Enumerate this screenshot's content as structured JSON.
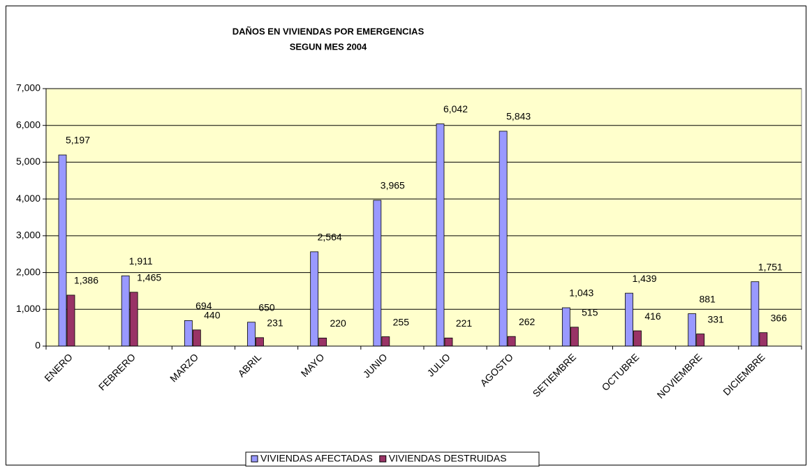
{
  "chart_data": {
    "type": "bar",
    "title": "DAÑOS EN VIVIENDAS POR EMERGENCIAS",
    "subtitle": "SEGUN MES 2004",
    "categories": [
      "ENERO",
      "FEBRERO",
      "MARZO",
      "ABRIL",
      "MAYO",
      "JUNIO",
      "JULIO",
      "AGOSTO",
      "SETIEMBRE",
      "OCTUBRE",
      "NOVIEMBRE",
      "DICIEMBRE"
    ],
    "series": [
      {
        "name": "VIVIENDAS AFECTADAS",
        "color": "#9999ff",
        "values": [
          5197,
          1911,
          694,
          650,
          2564,
          3965,
          6042,
          5843,
          1043,
          1439,
          881,
          1751
        ],
        "value_labels": [
          "5,197",
          "1,911",
          "694",
          "650",
          "2,564",
          "3,965",
          "6,042",
          "5,843",
          "1,043",
          "1,439",
          "881",
          "1,751"
        ]
      },
      {
        "name": "VIVIENDAS DESTRUIDAS",
        "color": "#993366",
        "values": [
          1386,
          1465,
          440,
          231,
          220,
          255,
          221,
          262,
          515,
          416,
          331,
          366
        ],
        "value_labels": [
          "1,386",
          "1,465",
          "440",
          "231",
          "220",
          "255",
          "221",
          "262",
          "515",
          "416",
          "331",
          "366"
        ]
      }
    ],
    "ylim": [
      0,
      7000
    ],
    "yticks": [
      0,
      {
        "value": 1000,
        "label": "1,000"
      },
      {
        "value": 2000,
        "label": "2,000"
      },
      {
        "value": 3000,
        "label": "3,000"
      },
      {
        "value": 4000,
        "label": "4,000"
      },
      {
        "value": 5000,
        "label": "5,000"
      },
      {
        "value": 6000,
        "label": "6,000"
      },
      {
        "value": 7000,
        "label": "7,000"
      }
    ],
    "grid": true,
    "plot_background": "#ffffcc",
    "legend": "bottom"
  }
}
